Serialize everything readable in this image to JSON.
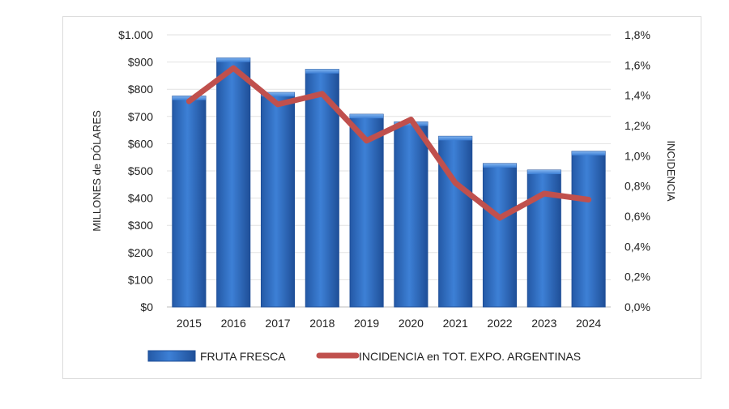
{
  "chart_data": {
    "type": "bar",
    "categories": [
      "2015",
      "2016",
      "2017",
      "2018",
      "2019",
      "2020",
      "2021",
      "2022",
      "2023",
      "2024"
    ],
    "series": [
      {
        "name": "FRUTA FRESCA",
        "type": "bar",
        "axis": "left",
        "values": [
          775,
          915,
          788,
          873,
          708,
          680,
          627,
          527,
          503,
          572
        ],
        "color": "#2e6fc4"
      },
      {
        "name": "INCIDENCIA en TOT. EXPO. ARGENTINAS",
        "type": "line",
        "axis": "right",
        "values": [
          1.36,
          1.58,
          1.34,
          1.41,
          1.1,
          1.24,
          0.82,
          0.59,
          0.75,
          0.71
        ],
        "color": "#c0504d"
      }
    ],
    "ylabel": "MILLONES de DÓLARES",
    "ylabel_right": "INCIDENCIA",
    "ylim": [
      0,
      1000
    ],
    "ylim_right": [
      0,
      1.8
    ],
    "left_ticks": [
      0,
      100,
      200,
      300,
      400,
      500,
      600,
      700,
      800,
      900,
      1000
    ],
    "left_tick_labels": [
      "$0",
      "$100",
      "$200",
      "$300",
      "$400",
      "$500",
      "$600",
      "$700",
      "$800",
      "$900",
      "$1.000"
    ],
    "right_ticks": [
      0,
      0.2,
      0.4,
      0.6,
      0.8,
      1.0,
      1.2,
      1.4,
      1.6,
      1.8
    ],
    "right_tick_labels": [
      "0,0%",
      "0,2%",
      "0,4%",
      "0,6%",
      "0,8%",
      "1,0%",
      "1,2%",
      "1,4%",
      "1,6%",
      "1,8%"
    ],
    "grid": true,
    "legend_position": "bottom"
  }
}
